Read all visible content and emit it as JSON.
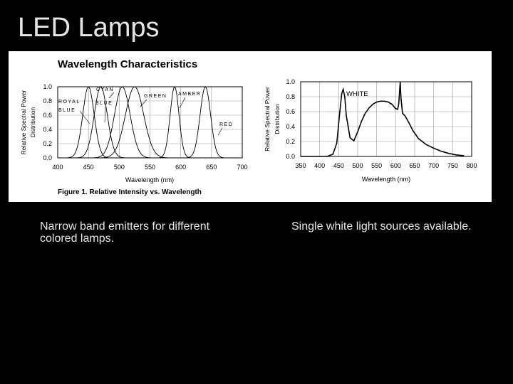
{
  "slide": {
    "title": "LED Lamps",
    "caption_left": "Narrow band emitters for different colored lamps.",
    "caption_right": "Single white light sources available."
  },
  "figure": {
    "title": "Wavelength Characteristics",
    "caption": "Figure 1. Relative Intensity vs. Wavelength"
  },
  "chart_data": [
    {
      "type": "line",
      "xlabel": "Wavelength (nm)",
      "ylabel": "Relative Spectral Power Distribution",
      "xlim": [
        400,
        700
      ],
      "ylim": [
        0,
        1.0
      ],
      "xticks": [
        "400",
        "450",
        "500",
        "550",
        "600",
        "650",
        "700"
      ],
      "yticks": [
        "0.0",
        "0.2",
        "0.4",
        "0.6",
        "0.8",
        "1.0"
      ],
      "grid": true,
      "series": [
        {
          "name": "ROYAL BLUE",
          "peak": 450,
          "fwhm": 22,
          "peak_value": 1.0
        },
        {
          "name": "BLUE",
          "peak": 470,
          "fwhm": 25,
          "peak_value": 1.0
        },
        {
          "name": "CYAN",
          "peak": 505,
          "fwhm": 30,
          "peak_value": 1.0
        },
        {
          "name": "GREEN",
          "peak": 525,
          "fwhm": 35,
          "peak_value": 1.0
        },
        {
          "name": "AMBER",
          "peak": 590,
          "fwhm": 17,
          "peak_value": 1.0
        },
        {
          "name": "RED",
          "peak": 640,
          "fwhm": 20,
          "peak_value": 1.0
        }
      ]
    },
    {
      "type": "line",
      "xlabel": "Wavelength (nm)",
      "ylabel": "Relative Spectral Power Distribution",
      "xlim": [
        350,
        800
      ],
      "ylim": [
        0,
        1.0
      ],
      "xticks": [
        "350",
        "400",
        "450",
        "500",
        "550",
        "600",
        "650",
        "700",
        "750",
        "800"
      ],
      "yticks": [
        "0.0",
        "0.2",
        "0.4",
        "0.6",
        "0.8",
        "1.0"
      ],
      "grid": true,
      "series": [
        {
          "name": "WHITE",
          "x": [
            350,
            420,
            435,
            445,
            452,
            458,
            462,
            466,
            470,
            480,
            490,
            500,
            510,
            520,
            530,
            540,
            550,
            560,
            570,
            580,
            590,
            600,
            605,
            608,
            610,
            612,
            614,
            618,
            625,
            635,
            645,
            660,
            680,
            700,
            720,
            740,
            760,
            780
          ],
          "y": [
            0.0,
            0.0,
            0.03,
            0.18,
            0.55,
            0.84,
            0.9,
            0.8,
            0.55,
            0.25,
            0.21,
            0.33,
            0.47,
            0.58,
            0.65,
            0.7,
            0.73,
            0.74,
            0.74,
            0.73,
            0.7,
            0.64,
            0.63,
            0.7,
            0.85,
            1.0,
            0.78,
            0.58,
            0.54,
            0.45,
            0.35,
            0.24,
            0.16,
            0.11,
            0.07,
            0.04,
            0.02,
            0.01
          ]
        }
      ]
    }
  ]
}
